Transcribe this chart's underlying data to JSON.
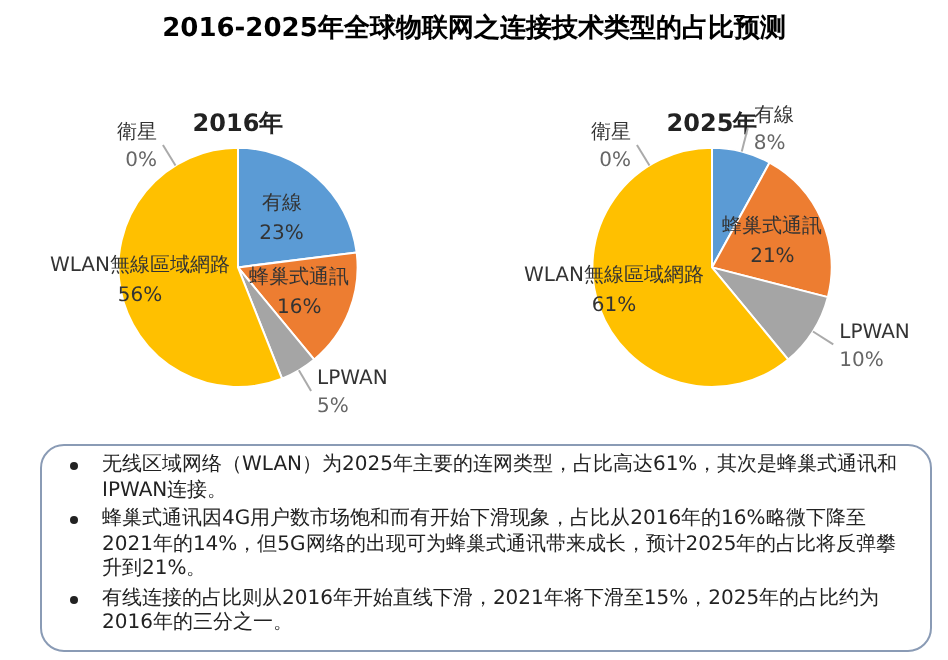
{
  "chart_data": [
    {
      "type": "pie",
      "title": "2016-2025年全球物联网之连接技术类型的占比预测",
      "subtitle": "2016年",
      "categories": [
        "有線",
        "蜂巢式通訊",
        "LPWAN",
        "WLAN無線區域網路",
        "衛星"
      ],
      "values": [
        23,
        16,
        5,
        56,
        0
      ],
      "colors": [
        "#5b9bd5",
        "#ed7d31",
        "#a5a5a5",
        "#ffc000",
        "#4472c4"
      ],
      "value_labels": [
        "23%",
        "16%",
        "5%",
        "56%",
        "0%"
      ]
    },
    {
      "type": "pie",
      "subtitle": "2025年",
      "categories": [
        "有線",
        "蜂巢式通訊",
        "LPWAN",
        "WLAN無線區域網路",
        "衛星"
      ],
      "values": [
        8,
        21,
        10,
        61,
        0
      ],
      "colors": [
        "#5b9bd5",
        "#ed7d31",
        "#a5a5a5",
        "#ffc000",
        "#4472c4"
      ],
      "value_labels": [
        "8%",
        "21%",
        "10%",
        "61%",
        "0%"
      ]
    },
    {
      "type": "other",
      "annotations": [
        "无线区域网络（WLAN）为2025年主要的连网类型，占比高达61%，其次是蜂巢式通讯和IPWAN连接。",
        "蜂巢式通讯因4G用户数市场饱和而有开始下滑现象，占比从2016年的16%略微下降至2021年的14%，但5G网络的出现可为蜂巢式通讯带来成长，预计2025年的占比将反弹攀升到21%。",
        "有线连接的占比则从2016年开始直线下滑，2021年将下滑至15%，2025年的占比约为2016年的三分之一。"
      ]
    }
  ]
}
